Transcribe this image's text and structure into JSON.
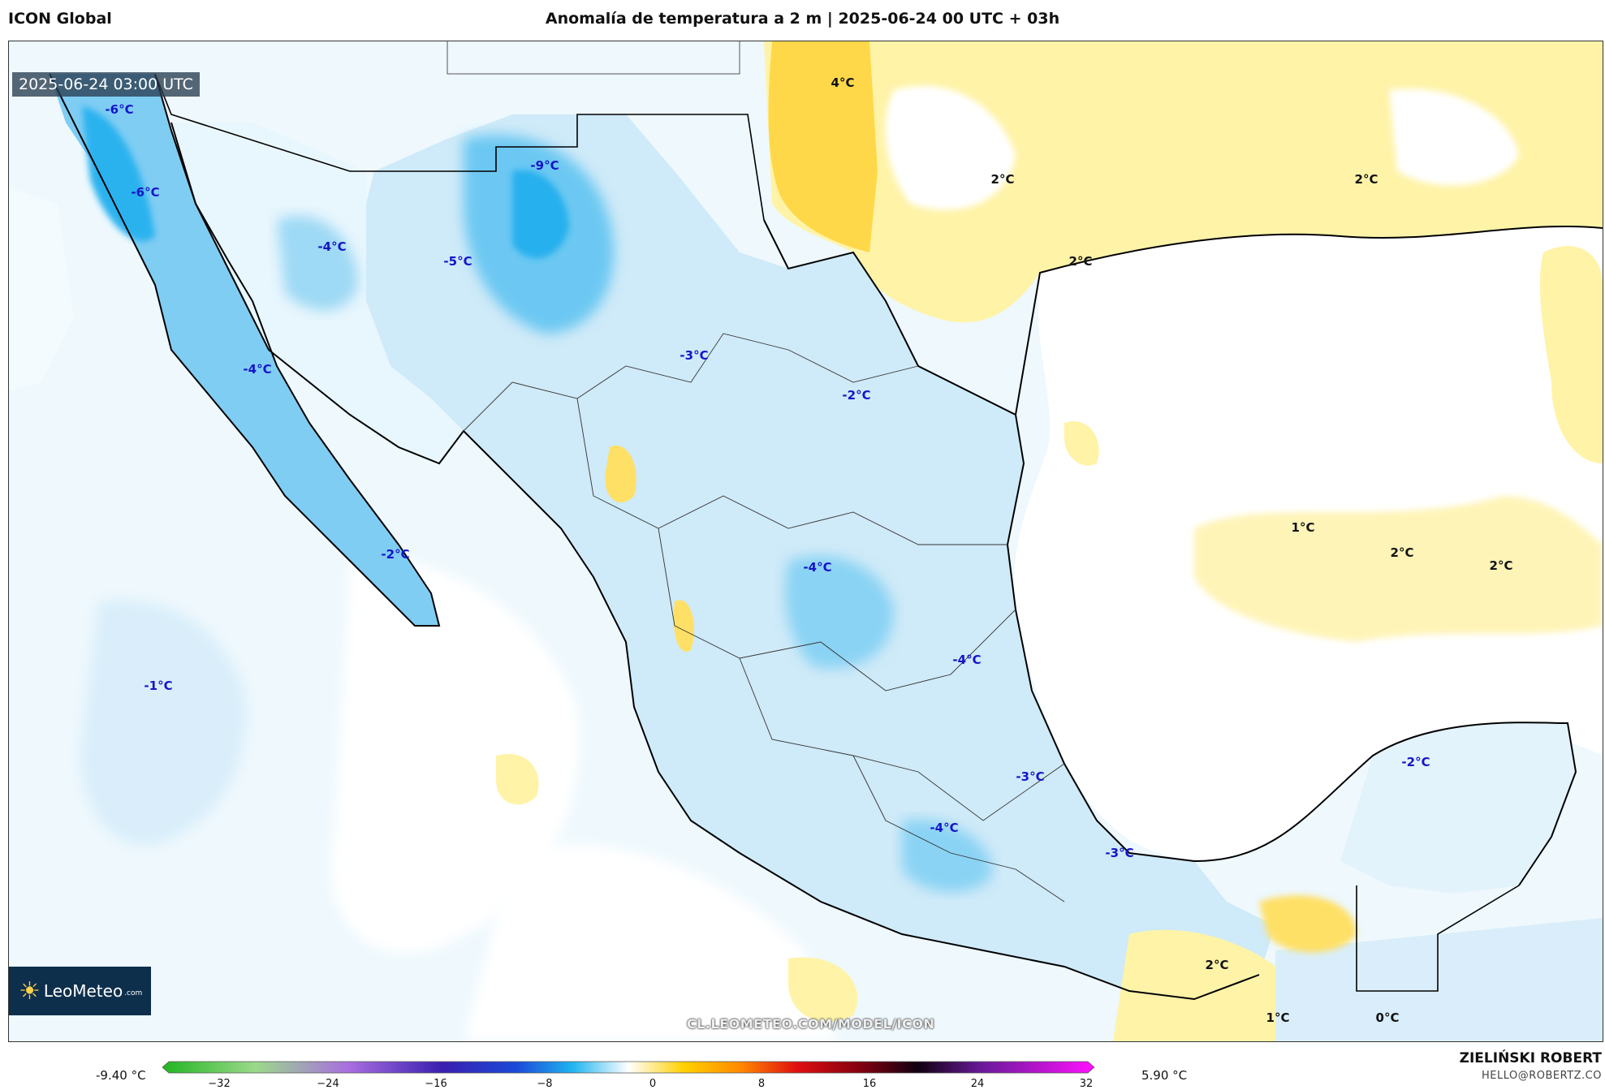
{
  "header": {
    "model": "ICON Global",
    "title": "Anomalía de temperatura a 2 m | 2025-06-24 00 UTC + 03h"
  },
  "map": {
    "timestamp": "2025-06-24 03:00 UTC",
    "logo": {
      "brand": "LeoMeteo",
      "domain": ".com"
    },
    "watermark": "CL.LEOMETEO.COM/MODEL/ICON",
    "labels": [
      {
        "text": "-6°C",
        "kind": "neg"
      },
      {
        "text": "-6°C",
        "kind": "neg"
      },
      {
        "text": "-4°C",
        "kind": "neg"
      },
      {
        "text": "-5°C",
        "kind": "neg"
      },
      {
        "text": "-9°C",
        "kind": "neg"
      },
      {
        "text": "-4°C",
        "kind": "neg"
      },
      {
        "text": "-2°C",
        "kind": "neg"
      },
      {
        "text": "-3°C",
        "kind": "neg"
      },
      {
        "text": "-2°C",
        "kind": "neg"
      },
      {
        "text": "-1°C",
        "kind": "neg"
      },
      {
        "text": "-4°C",
        "kind": "neg"
      },
      {
        "text": "-4°C",
        "kind": "neg"
      },
      {
        "text": "-3°C",
        "kind": "neg"
      },
      {
        "text": "-4°C",
        "kind": "neg"
      },
      {
        "text": "-3°C",
        "kind": "neg"
      },
      {
        "text": "-2°C",
        "kind": "neg"
      },
      {
        "text": "4°C",
        "kind": "pos"
      },
      {
        "text": "2°C",
        "kind": "pos"
      },
      {
        "text": "2°C",
        "kind": "pos"
      },
      {
        "text": "2°C",
        "kind": "pos"
      },
      {
        "text": "1°C",
        "kind": "pos"
      },
      {
        "text": "2°C",
        "kind": "pos"
      },
      {
        "text": "2°C",
        "kind": "pos"
      },
      {
        "text": "2°C",
        "kind": "pos"
      },
      {
        "text": "1°C",
        "kind": "pos"
      },
      {
        "text": "0°C",
        "kind": "pos"
      }
    ]
  },
  "colorbar": {
    "min_label": "-9.40 °C",
    "max_label": "5.90 °C",
    "ticks": [
      "−32",
      "−24",
      "−16",
      "−8",
      "0",
      "8",
      "16",
      "24",
      "32"
    ],
    "range": [
      -32,
      32
    ]
  },
  "footer": {
    "author": "ZIELIŃSKI ROBERT",
    "email": "HELLO@ROBERTZ.CO"
  }
}
